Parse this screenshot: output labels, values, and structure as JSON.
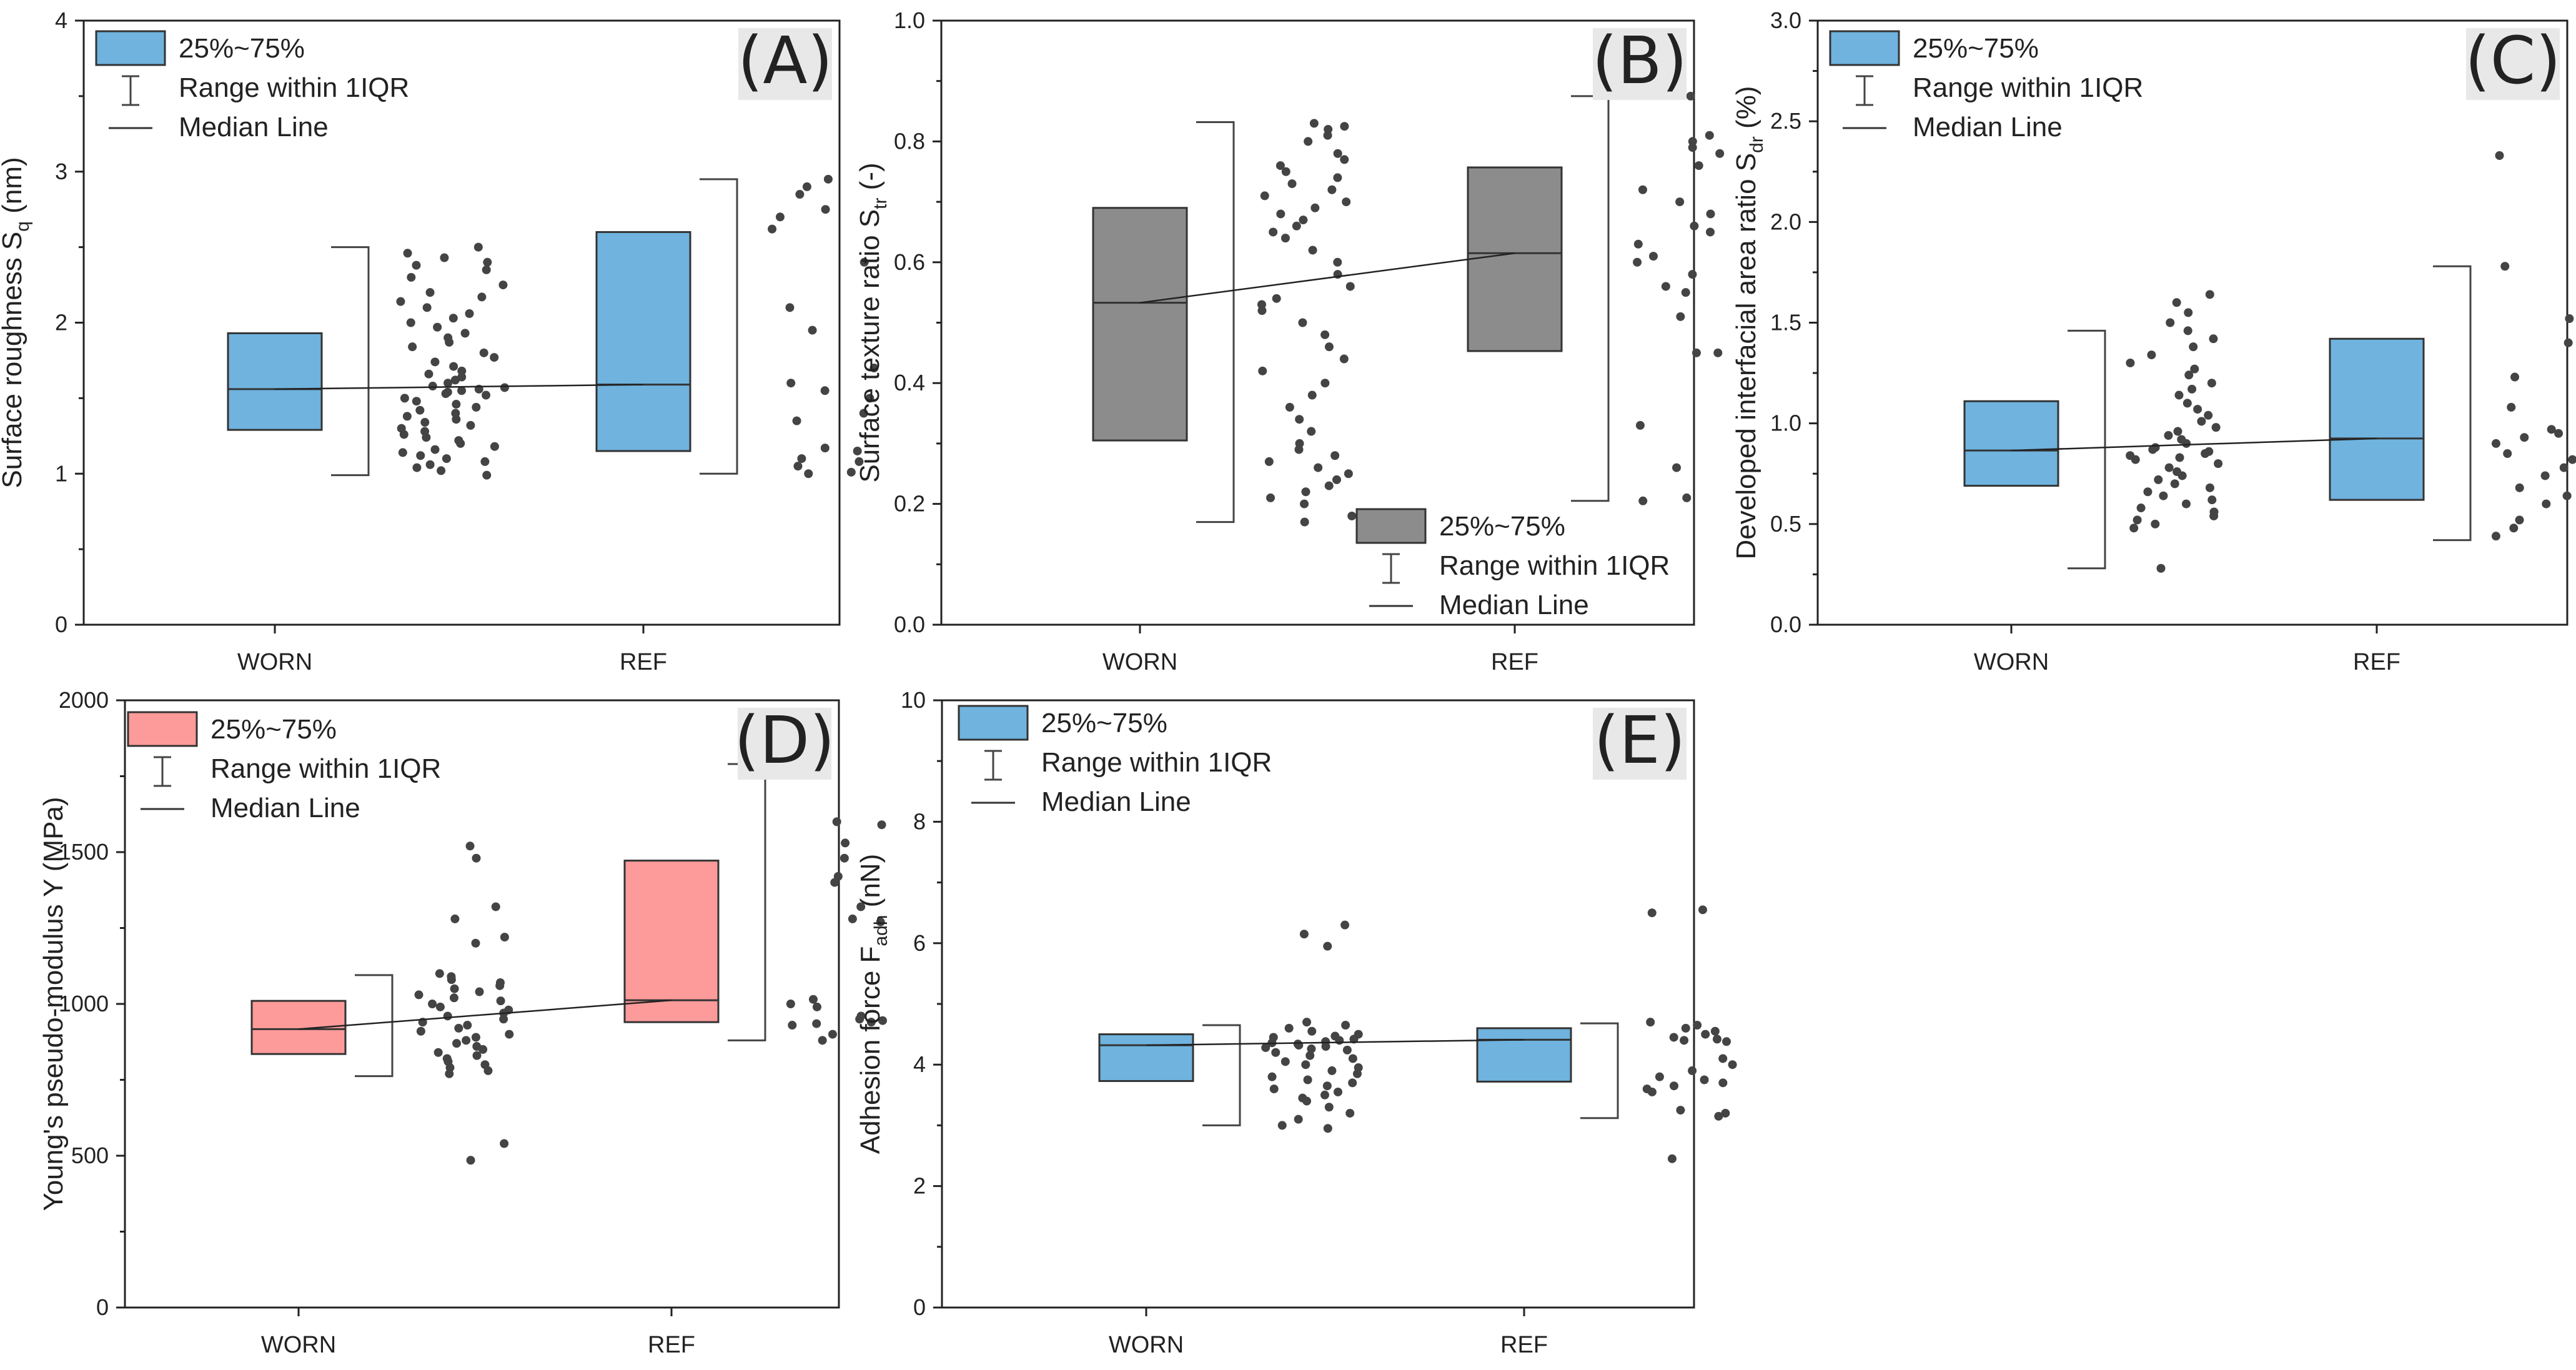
{
  "chart_data": [
    {
      "panel": "(A)",
      "type": "box",
      "ylabel": "Surface roughness S",
      "ylabel_sub": "q",
      "ylabel_tail": " (nm)",
      "ylim": [
        0,
        4
      ],
      "yticks": [
        "0",
        "1",
        "2",
        "3",
        "4"
      ],
      "categories": [
        "WORN",
        "REF"
      ],
      "box_color": "#6fb3de",
      "legend": {
        "position": "top-left",
        "entries": [
          "25%~75%",
          "Range within 1IQR",
          "Median Line"
        ]
      },
      "boxes": [
        {
          "category": "WORN",
          "q1": 1.29,
          "median": 1.56,
          "q3": 1.93,
          "whisker_low": 0.99,
          "whisker_high": 2.5,
          "points": [
            2.5,
            2.46,
            2.43,
            2.4,
            2.38,
            2.35,
            2.3,
            2.25,
            2.2,
            2.17,
            2.14,
            2.1,
            2.06,
            2.03,
            2.0,
            1.97,
            1.93,
            1.9,
            1.87,
            1.84,
            1.8,
            1.77,
            1.74,
            1.71,
            1.68,
            1.66,
            1.64,
            1.62,
            1.6,
            1.58,
            1.57,
            1.56,
            1.55,
            1.54,
            1.53,
            1.52,
            1.5,
            1.48,
            1.46,
            1.44,
            1.42,
            1.4,
            1.38,
            1.36,
            1.34,
            1.32,
            1.3,
            1.28,
            1.26,
            1.24,
            1.22,
            1.2,
            1.18,
            1.16,
            1.14,
            1.12,
            1.1,
            1.08,
            1.06,
            1.04,
            1.02,
            0.99
          ]
        },
        {
          "category": "REF",
          "q1": 1.15,
          "median": 1.59,
          "q3": 2.6,
          "whisker_low": 1.0,
          "whisker_high": 2.95,
          "points": [
            2.95,
            2.9,
            2.85,
            2.75,
            2.7,
            2.62,
            2.4,
            2.1,
            1.95,
            1.7,
            1.6,
            1.55,
            1.5,
            1.4,
            1.35,
            1.17,
            1.15,
            1.1,
            1.08,
            1.05,
            1.01,
            1.0
          ]
        }
      ]
    },
    {
      "panel": "(B)",
      "type": "box",
      "ylabel": "Surface texture ratio S",
      "ylabel_sub": "tr",
      "ylabel_tail": " (-)",
      "ylim": [
        0,
        1
      ],
      "yticks": [
        "0.0",
        "0.2",
        "0.4",
        "0.6",
        "0.8",
        "1.0"
      ],
      "categories": [
        "WORN",
        "REF"
      ],
      "box_color": "#8c8c8c",
      "legend": {
        "position": "bottom-right",
        "entries": [
          "25%~75%",
          "Range within 1IQR",
          "Median Line"
        ]
      },
      "boxes": [
        {
          "category": "WORN",
          "q1": 0.305,
          "median": 0.533,
          "q3": 0.69,
          "whisker_low": 0.17,
          "whisker_high": 0.832,
          "points": [
            0.83,
            0.825,
            0.82,
            0.81,
            0.8,
            0.78,
            0.77,
            0.76,
            0.75,
            0.74,
            0.73,
            0.72,
            0.71,
            0.7,
            0.69,
            0.68,
            0.67,
            0.66,
            0.65,
            0.64,
            0.62,
            0.6,
            0.58,
            0.56,
            0.54,
            0.53,
            0.52,
            0.5,
            0.48,
            0.46,
            0.44,
            0.42,
            0.4,
            0.38,
            0.36,
            0.34,
            0.32,
            0.3,
            0.29,
            0.28,
            0.27,
            0.26,
            0.25,
            0.24,
            0.23,
            0.22,
            0.21,
            0.2,
            0.18,
            0.17
          ]
        },
        {
          "category": "REF",
          "q1": 0.453,
          "median": 0.615,
          "q3": 0.757,
          "whisker_low": 0.205,
          "whisker_high": 0.875,
          "points": [
            0.875,
            0.81,
            0.8,
            0.79,
            0.78,
            0.76,
            0.72,
            0.7,
            0.68,
            0.66,
            0.65,
            0.63,
            0.61,
            0.6,
            0.58,
            0.56,
            0.55,
            0.51,
            0.45,
            0.45,
            0.33,
            0.26,
            0.21,
            0.205
          ]
        }
      ]
    },
    {
      "panel": "(C)",
      "type": "box",
      "ylabel": "Developed interfacial area ratio S",
      "ylabel_sub": "dr",
      "ylabel_tail": " (%)",
      "ylim": [
        0,
        3
      ],
      "yticks": [
        "0.0",
        "0.5",
        "1.0",
        "1.5",
        "2.0",
        "2.5",
        "3.0"
      ],
      "categories": [
        "WORN",
        "REF"
      ],
      "box_color": "#6fb3de",
      "legend": {
        "position": "top-left",
        "entries": [
          "25%~75%",
          "Range within 1IQR",
          "Median Line"
        ]
      },
      "boxes": [
        {
          "category": "WORN",
          "q1": 0.69,
          "median": 0.865,
          "q3": 1.11,
          "whisker_low": 0.28,
          "whisker_high": 1.46,
          "points": [
            1.64,
            1.6,
            1.55,
            1.5,
            1.46,
            1.42,
            1.38,
            1.34,
            1.3,
            1.27,
            1.24,
            1.2,
            1.17,
            1.14,
            1.1,
            1.07,
            1.04,
            1.01,
            0.98,
            0.96,
            0.94,
            0.92,
            0.9,
            0.88,
            0.87,
            0.86,
            0.85,
            0.84,
            0.83,
            0.82,
            0.8,
            0.78,
            0.76,
            0.74,
            0.72,
            0.7,
            0.68,
            0.66,
            0.64,
            0.62,
            0.6,
            0.58,
            0.56,
            0.54,
            0.52,
            0.5,
            0.48,
            0.28
          ]
        },
        {
          "category": "REF",
          "q1": 0.62,
          "median": 0.925,
          "q3": 1.42,
          "whisker_low": 0.42,
          "whisker_high": 1.78,
          "points": [
            2.33,
            1.78,
            1.52,
            1.43,
            1.4,
            1.23,
            1.08,
            0.97,
            0.95,
            0.93,
            0.9,
            0.85,
            0.82,
            0.78,
            0.74,
            0.68,
            0.64,
            0.6,
            0.53,
            0.52,
            0.48,
            0.44
          ]
        }
      ]
    },
    {
      "panel": "(D)",
      "type": "box",
      "ylabel": "Young's pseudo-modulus Y (MPa)",
      "ylim": [
        0,
        2000
      ],
      "yticks": [
        "0",
        "500",
        "1000",
        "1500",
        "2000"
      ],
      "categories": [
        "WORN",
        "REF"
      ],
      "box_color": "#fd9b9b",
      "legend": {
        "position": "top-left",
        "entries": [
          "25%~75%",
          "Range within 1IQR",
          "Median Line"
        ]
      },
      "boxes": [
        {
          "category": "WORN",
          "q1": 835,
          "median": 917,
          "q3": 1010,
          "whisker_low": 762,
          "whisker_high": 1095,
          "points": [
            1520,
            1480,
            1320,
            1280,
            1220,
            1200,
            1100,
            1090,
            1080,
            1070,
            1060,
            1050,
            1040,
            1030,
            1020,
            1010,
            1000,
            990,
            980,
            970,
            960,
            950,
            940,
            930,
            920,
            910,
            900,
            890,
            880,
            870,
            860,
            850,
            840,
            830,
            820,
            810,
            800,
            790,
            780,
            770,
            540,
            485
          ]
        },
        {
          "category": "REF",
          "q1": 940,
          "median": 1012,
          "q3": 1472,
          "whisker_low": 880,
          "whisker_high": 1790,
          "points": [
            1790,
            1770,
            1600,
            1590,
            1530,
            1480,
            1420,
            1400,
            1320,
            1280,
            1270,
            1015,
            1000,
            990,
            960,
            950,
            945,
            940,
            935,
            930,
            900,
            880
          ]
        }
      ]
    },
    {
      "panel": "(E)",
      "type": "box",
      "ylabel": "Adhesion force F",
      "ylabel_sub": "adh",
      "ylabel_tail": " (nN)",
      "ylim": [
        0,
        10
      ],
      "yticks": [
        "0",
        "2",
        "4",
        "6",
        "8",
        "10"
      ],
      "categories": [
        "WORN",
        "REF"
      ],
      "box_color": "#6fb3de",
      "legend": {
        "position": "top-left",
        "entries": [
          "25%~75%",
          "Range within 1IQR",
          "Median Line"
        ]
      },
      "boxes": [
        {
          "category": "WORN",
          "q1": 3.73,
          "median": 4.32,
          "q3": 4.5,
          "whisker_low": 3.0,
          "whisker_high": 4.65,
          "points": [
            6.3,
            6.15,
            5.95,
            4.7,
            4.65,
            4.6,
            4.55,
            4.5,
            4.47,
            4.45,
            4.42,
            4.4,
            4.38,
            4.36,
            4.34,
            4.32,
            4.3,
            4.28,
            4.26,
            4.24,
            4.2,
            4.15,
            4.1,
            4.05,
            4.0,
            3.95,
            3.9,
            3.85,
            3.8,
            3.75,
            3.7,
            3.65,
            3.6,
            3.55,
            3.5,
            3.45,
            3.4,
            3.3,
            3.2,
            3.1,
            3.0,
            2.95
          ]
        },
        {
          "category": "REF",
          "q1": 3.72,
          "median": 4.41,
          "q3": 4.6,
          "whisker_low": 3.12,
          "whisker_high": 4.68,
          "points": [
            6.55,
            6.5,
            4.7,
            4.65,
            4.6,
            4.55,
            4.5,
            4.45,
            4.42,
            4.4,
            4.38,
            4.1,
            4.0,
            3.9,
            3.8,
            3.75,
            3.7,
            3.65,
            3.6,
            3.55,
            3.25,
            3.2,
            3.15,
            2.45
          ]
        }
      ]
    }
  ]
}
